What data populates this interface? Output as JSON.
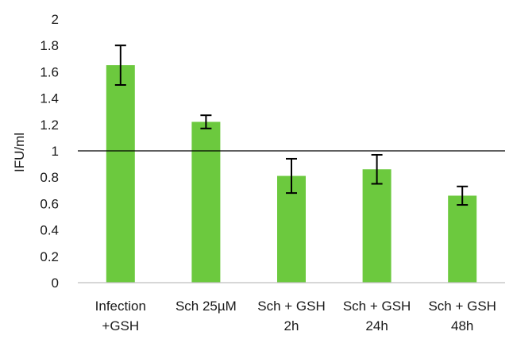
{
  "chart_data": {
    "type": "bar",
    "categories": [
      [
        "Infection",
        "+GSH"
      ],
      [
        "Sch 25µM"
      ],
      [
        "Sch + GSH",
        "2h"
      ],
      [
        "Sch + GSH",
        "24h"
      ],
      [
        "Sch + GSH",
        "48h"
      ]
    ],
    "values": [
      1.65,
      1.22,
      0.81,
      0.86,
      0.66
    ],
    "errors": [
      0.15,
      0.05,
      0.13,
      0.11,
      0.07
    ],
    "title": "",
    "xlabel": "",
    "ylabel": "IFU/ml",
    "ylim": [
      0,
      2
    ],
    "yticks": [
      "0",
      "0.2",
      "0.4",
      "0.6",
      "0.8",
      "1",
      "1.2",
      "1.4",
      "1.6",
      "1.8",
      "2"
    ],
    "reference_line": 1,
    "grid": false,
    "legend": "none",
    "bar_color": "#6cc93e",
    "error_color": "#000000",
    "axis_color": "#bfbfbf",
    "reference_line_color": "#000000"
  }
}
